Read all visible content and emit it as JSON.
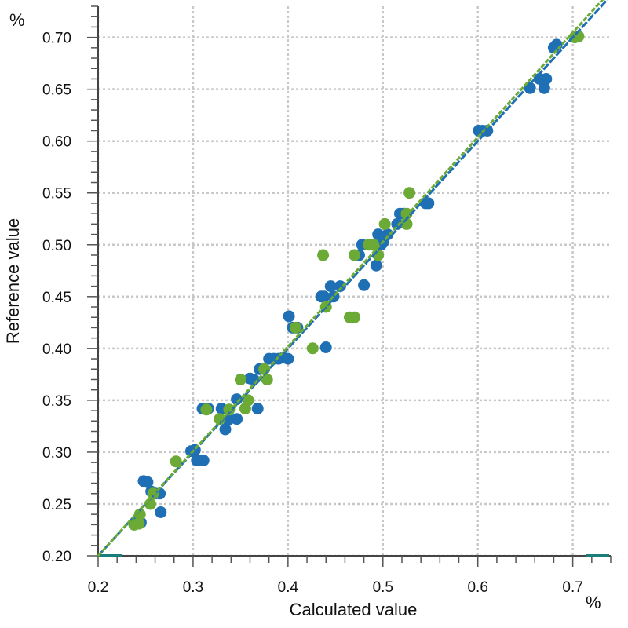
{
  "chart_data": {
    "type": "scatter",
    "title": "",
    "xlabel": "Calculated value",
    "ylabel": "Reference value",
    "x_unit": "%",
    "y_unit": "%",
    "xlim": [
      0.2,
      0.74
    ],
    "ylim": [
      0.2,
      0.73
    ],
    "x_ticks": [
      "0.2",
      "0.3",
      "0.4",
      "0.5",
      "0.6",
      "0.7"
    ],
    "y_ticks": [
      "0.20",
      "0.25",
      "0.30",
      "0.35",
      "0.40",
      "0.45",
      "0.50",
      "0.55",
      "0.60",
      "0.65",
      "0.70"
    ],
    "grid": true,
    "legend": "none",
    "colors": {
      "calibration": "#1f6fb5",
      "validation": "#6aaa35",
      "range_marker": "#1a7f7a"
    },
    "series": [
      {
        "color": "#1f6fb5",
        "regression": [
          [
            0.2,
            0.2
          ],
          [
            0.74,
            0.74
          ]
        ],
        "points": [
          [
            0.241,
            0.232
          ],
          [
            0.245,
            0.232
          ],
          [
            0.248,
            0.272
          ],
          [
            0.252,
            0.271
          ],
          [
            0.256,
            0.262
          ],
          [
            0.26,
            0.26
          ],
          [
            0.265,
            0.26
          ],
          [
            0.266,
            0.242
          ],
          [
            0.298,
            0.301
          ],
          [
            0.302,
            0.302
          ],
          [
            0.304,
            0.292
          ],
          [
            0.311,
            0.292
          ],
          [
            0.31,
            0.342
          ],
          [
            0.316,
            0.342
          ],
          [
            0.33,
            0.342
          ],
          [
            0.334,
            0.322
          ],
          [
            0.337,
            0.331
          ],
          [
            0.346,
            0.332
          ],
          [
            0.346,
            0.351
          ],
          [
            0.36,
            0.371
          ],
          [
            0.364,
            0.37
          ],
          [
            0.368,
            0.342
          ],
          [
            0.37,
            0.38
          ],
          [
            0.375,
            0.38
          ],
          [
            0.38,
            0.39
          ],
          [
            0.385,
            0.39
          ],
          [
            0.39,
            0.39
          ],
          [
            0.395,
            0.391
          ],
          [
            0.4,
            0.39
          ],
          [
            0.401,
            0.431
          ],
          [
            0.405,
            0.42
          ],
          [
            0.41,
            0.42
          ],
          [
            0.435,
            0.45
          ],
          [
            0.438,
            0.45
          ],
          [
            0.44,
            0.401
          ],
          [
            0.445,
            0.46
          ],
          [
            0.448,
            0.45
          ],
          [
            0.455,
            0.46
          ],
          [
            0.475,
            0.49
          ],
          [
            0.478,
            0.5
          ],
          [
            0.48,
            0.461
          ],
          [
            0.488,
            0.5
          ],
          [
            0.493,
            0.48
          ],
          [
            0.495,
            0.51
          ],
          [
            0.498,
            0.5
          ],
          [
            0.5,
            0.502
          ],
          [
            0.505,
            0.51
          ],
          [
            0.515,
            0.52
          ],
          [
            0.518,
            0.53
          ],
          [
            0.522,
            0.53
          ],
          [
            0.545,
            0.54
          ],
          [
            0.548,
            0.54
          ],
          [
            0.601,
            0.61
          ],
          [
            0.605,
            0.61
          ],
          [
            0.61,
            0.61
          ],
          [
            0.655,
            0.651
          ],
          [
            0.665,
            0.66
          ],
          [
            0.67,
            0.651
          ],
          [
            0.672,
            0.66
          ],
          [
            0.68,
            0.69
          ],
          [
            0.683,
            0.693
          ]
        ]
      },
      {
        "color": "#6aaa35",
        "regression": [
          [
            0.2,
            0.2
          ],
          [
            0.74,
            0.745
          ]
        ],
        "points": [
          [
            0.238,
            0.23
          ],
          [
            0.243,
            0.231
          ],
          [
            0.244,
            0.24
          ],
          [
            0.255,
            0.25
          ],
          [
            0.258,
            0.26
          ],
          [
            0.282,
            0.291
          ],
          [
            0.314,
            0.341
          ],
          [
            0.328,
            0.332
          ],
          [
            0.338,
            0.341
          ],
          [
            0.35,
            0.37
          ],
          [
            0.355,
            0.342
          ],
          [
            0.358,
            0.35
          ],
          [
            0.375,
            0.38
          ],
          [
            0.378,
            0.37
          ],
          [
            0.408,
            0.42
          ],
          [
            0.426,
            0.4
          ],
          [
            0.437,
            0.49
          ],
          [
            0.44,
            0.44
          ],
          [
            0.465,
            0.43
          ],
          [
            0.47,
            0.43
          ],
          [
            0.47,
            0.49
          ],
          [
            0.485,
            0.5
          ],
          [
            0.49,
            0.5
          ],
          [
            0.495,
            0.49
          ],
          [
            0.502,
            0.52
          ],
          [
            0.525,
            0.52
          ],
          [
            0.525,
            0.53
          ],
          [
            0.528,
            0.55
          ],
          [
            0.702,
            0.7
          ],
          [
            0.706,
            0.701
          ]
        ]
      }
    ]
  }
}
